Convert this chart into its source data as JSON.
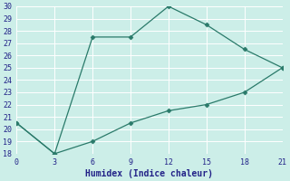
{
  "line1_x": [
    0,
    3,
    6,
    9,
    12,
    15,
    18,
    21
  ],
  "line1_y": [
    20.5,
    18,
    27.5,
    27.5,
    30,
    28.5,
    26.5,
    25
  ],
  "line2_x": [
    0,
    3,
    6,
    9,
    12,
    15,
    18,
    21
  ],
  "line2_y": [
    20.5,
    18,
    19.0,
    20.5,
    21.5,
    22.0,
    23.0,
    25
  ],
  "line_color": "#2a7a6a",
  "marker": "D",
  "marker_size": 2.5,
  "xlabel": "Humidex (Indice chaleur)",
  "xlim": [
    0,
    21
  ],
  "ylim": [
    18,
    30
  ],
  "xticks": [
    0,
    3,
    6,
    9,
    12,
    15,
    18,
    21
  ],
  "yticks": [
    18,
    19,
    20,
    21,
    22,
    23,
    24,
    25,
    26,
    27,
    28,
    29,
    30
  ],
  "bg_color": "#cceee8",
  "grid_color": "#b0ddd8",
  "font_color": "#222288",
  "tick_font_size": 6,
  "xlabel_font_size": 7,
  "line_width": 0.9
}
